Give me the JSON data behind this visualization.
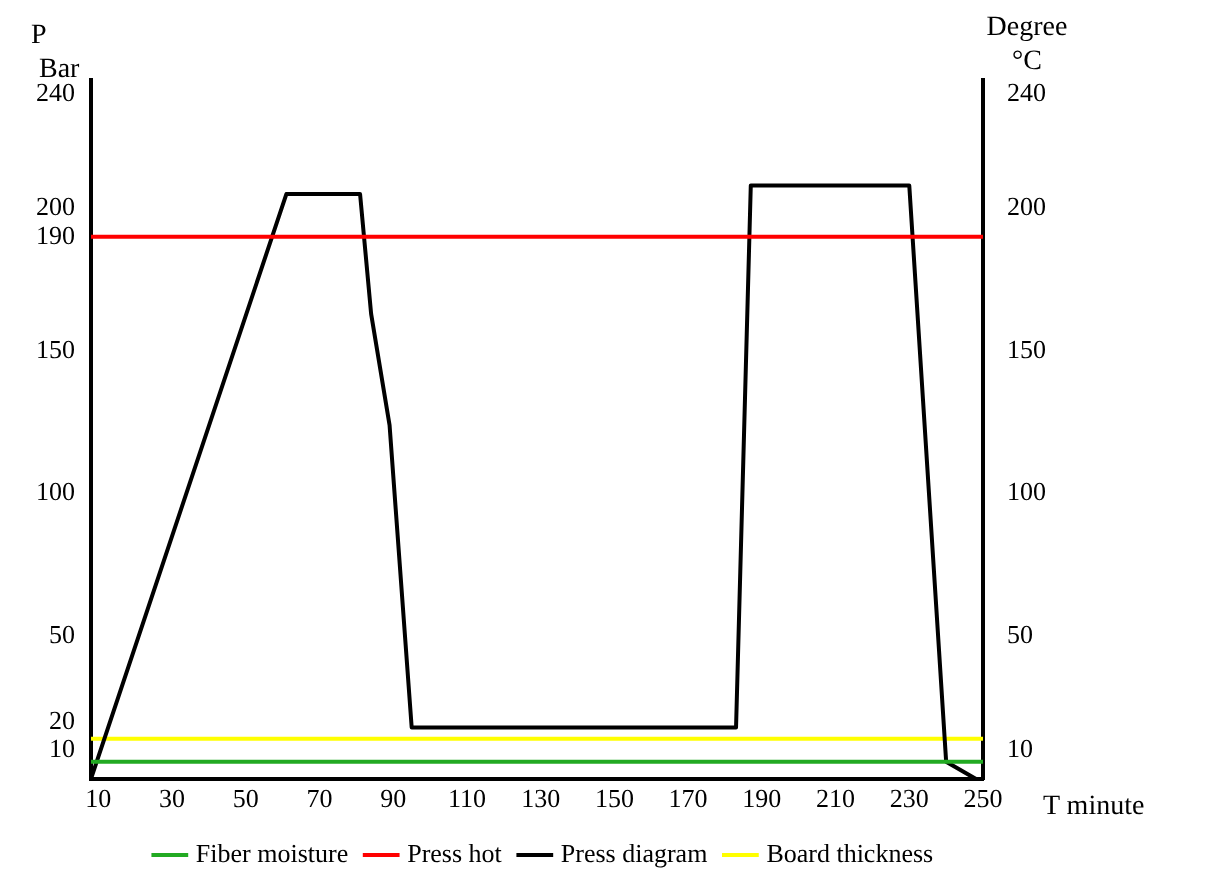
{
  "chart_data": {
    "type": "line",
    "xlabel": "T minute",
    "ylabel": "P Bar",
    "y2label": "Degree °C",
    "xlim": [
      8,
      250
    ],
    "xticks": [
      10,
      30,
      50,
      70,
      90,
      110,
      130,
      150,
      170,
      190,
      210,
      230,
      250
    ],
    "ylim": [
      0,
      245
    ],
    "yticks": [
      10,
      20,
      50,
      100,
      150,
      190,
      200,
      240
    ],
    "y2lim": [
      0,
      245
    ],
    "y2ticks": [
      10,
      50,
      100,
      150,
      200,
      240
    ],
    "grid": false,
    "legend": "bottom",
    "marker": "none",
    "line_style": "solid",
    "series": [
      {
        "name": "Fiber moisture",
        "color": "#22aa22",
        "x": [
          8,
          250
        ],
        "values": [
          6,
          6
        ]
      },
      {
        "name": "Press hot",
        "color": "#ff0000",
        "x": [
          8,
          250
        ],
        "values": [
          190,
          190
        ]
      },
      {
        "name": "Press diagram",
        "color": "#000000",
        "x": [
          8,
          61,
          81,
          84,
          89,
          95,
          183,
          187,
          230,
          240,
          248
        ],
        "values": [
          0,
          205,
          205,
          163,
          124,
          18,
          18,
          208,
          208,
          6,
          0
        ]
      },
      {
        "name": "Board thickness",
        "color": "#ffff00",
        "x": [
          8,
          250
        ],
        "values": [
          14,
          14
        ]
      }
    ]
  }
}
